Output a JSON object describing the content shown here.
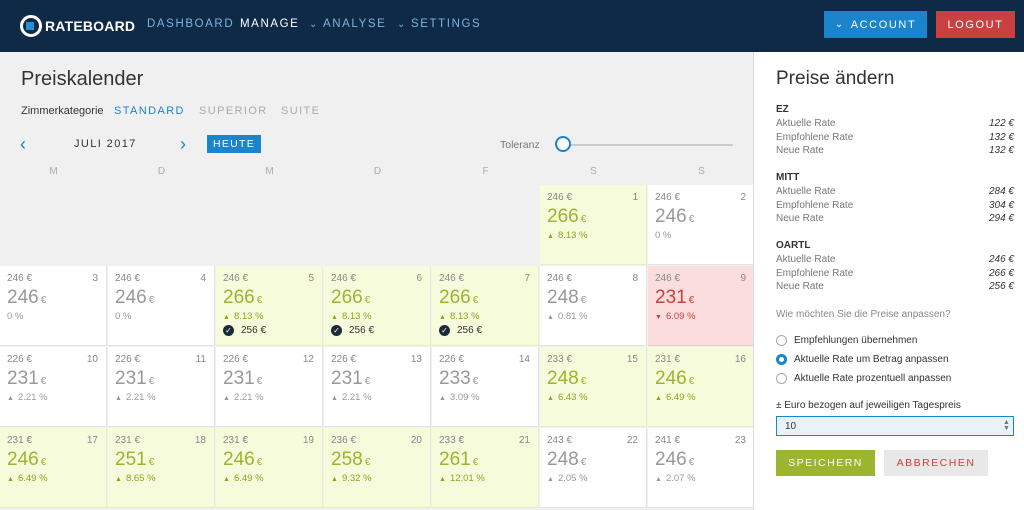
{
  "nav": {
    "logo": "RATEBOARD",
    "items": [
      "DASHBOARD",
      "MANAGE",
      "ANALYSE",
      "SETTINGS"
    ],
    "account": "ACCOUNT",
    "logout": "LOGOUT"
  },
  "calendar": {
    "title": "Preiskalender",
    "category_label": "Zimmerkategorie",
    "tabs": [
      "STANDARD",
      "SUPERIOR",
      "SUITE"
    ],
    "month": "JULI 2017",
    "today": "HEUTE",
    "tolerance": "Toleranz",
    "weekdays": [
      "M",
      "D",
      "M",
      "D",
      "F",
      "S",
      "S"
    ],
    "cells": [
      {
        "col": 5,
        "row": 0,
        "day": "1",
        "old": "246 €",
        "price": "266",
        "pct": "8.13 %",
        "dir": "up",
        "state": "green",
        "new": ""
      },
      {
        "col": 6,
        "row": 0,
        "day": "2",
        "old": "246 €",
        "price": "246",
        "pct": "0 %",
        "dir": "none",
        "state": "white",
        "new": ""
      },
      {
        "col": 0,
        "row": 1,
        "day": "3",
        "old": "246 €",
        "price": "246",
        "pct": "0 %",
        "dir": "none",
        "state": "white",
        "new": ""
      },
      {
        "col": 1,
        "row": 1,
        "day": "4",
        "old": "246 €",
        "price": "246",
        "pct": "0 %",
        "dir": "none",
        "state": "white",
        "new": ""
      },
      {
        "col": 2,
        "row": 1,
        "day": "5",
        "old": "246 €",
        "price": "266",
        "pct": "8.13 %",
        "dir": "up",
        "state": "green",
        "new": "256 €"
      },
      {
        "col": 3,
        "row": 1,
        "day": "6",
        "old": "246 €",
        "price": "266",
        "pct": "8.13 %",
        "dir": "up",
        "state": "green",
        "new": "256 €"
      },
      {
        "col": 4,
        "row": 1,
        "day": "7",
        "old": "246 €",
        "price": "266",
        "pct": "8.13 %",
        "dir": "up",
        "state": "green",
        "new": "256 €"
      },
      {
        "col": 5,
        "row": 1,
        "day": "8",
        "old": "246 €",
        "price": "248",
        "pct": "0.81 %",
        "dir": "up",
        "state": "white",
        "new": ""
      },
      {
        "col": 6,
        "row": 1,
        "day": "9",
        "old": "246 €",
        "price": "231",
        "pct": "6.09 %",
        "dir": "down",
        "state": "red",
        "new": ""
      },
      {
        "col": 0,
        "row": 2,
        "day": "10",
        "old": "226 €",
        "price": "231",
        "pct": "2.21 %",
        "dir": "up",
        "state": "white",
        "new": ""
      },
      {
        "col": 1,
        "row": 2,
        "day": "11",
        "old": "226 €",
        "price": "231",
        "pct": "2.21 %",
        "dir": "up",
        "state": "white",
        "new": ""
      },
      {
        "col": 2,
        "row": 2,
        "day": "12",
        "old": "226 €",
        "price": "231",
        "pct": "2.21 %",
        "dir": "up",
        "state": "white",
        "new": ""
      },
      {
        "col": 3,
        "row": 2,
        "day": "13",
        "old": "226 €",
        "price": "231",
        "pct": "2.21 %",
        "dir": "up",
        "state": "white",
        "new": ""
      },
      {
        "col": 4,
        "row": 2,
        "day": "14",
        "old": "226 €",
        "price": "233",
        "pct": "3.09 %",
        "dir": "up",
        "state": "white",
        "new": ""
      },
      {
        "col": 5,
        "row": 2,
        "day": "15",
        "old": "233 €",
        "price": "248",
        "pct": "6.43 %",
        "dir": "up",
        "state": "green",
        "new": ""
      },
      {
        "col": 6,
        "row": 2,
        "day": "16",
        "old": "231 €",
        "price": "246",
        "pct": "6.49 %",
        "dir": "up",
        "state": "green",
        "new": ""
      },
      {
        "col": 0,
        "row": 3,
        "day": "17",
        "old": "231 €",
        "price": "246",
        "pct": "6.49 %",
        "dir": "up",
        "state": "green",
        "new": ""
      },
      {
        "col": 1,
        "row": 3,
        "day": "18",
        "old": "231 €",
        "price": "251",
        "pct": "8.65 %",
        "dir": "up",
        "state": "green",
        "new": ""
      },
      {
        "col": 2,
        "row": 3,
        "day": "19",
        "old": "231 €",
        "price": "246",
        "pct": "6.49 %",
        "dir": "up",
        "state": "green",
        "new": ""
      },
      {
        "col": 3,
        "row": 3,
        "day": "20",
        "old": "236 €",
        "price": "258",
        "pct": "9.32 %",
        "dir": "up",
        "state": "green",
        "new": ""
      },
      {
        "col": 4,
        "row": 3,
        "day": "21",
        "old": "233 €",
        "price": "261",
        "pct": "12.01 %",
        "dir": "up",
        "state": "green",
        "new": ""
      },
      {
        "col": 5,
        "row": 3,
        "day": "22",
        "old": "243 €",
        "price": "248",
        "pct": "2.05 %",
        "dir": "up",
        "state": "white",
        "new": ""
      },
      {
        "col": 6,
        "row": 3,
        "day": "23",
        "old": "241 €",
        "price": "246",
        "pct": "2.07 %",
        "dir": "up",
        "state": "white",
        "new": ""
      }
    ]
  },
  "panel": {
    "title": "Preise ändern",
    "groups": [
      {
        "name": "EZ",
        "rows": [
          [
            "Aktuelle Rate",
            "122 €"
          ],
          [
            "Empfohlene Rate",
            "132 €"
          ],
          [
            "Neue Rate",
            "132 €"
          ]
        ]
      },
      {
        "name": "MITT",
        "rows": [
          [
            "Aktuelle Rate",
            "284 €"
          ],
          [
            "Empfohlene Rate",
            "304 €"
          ],
          [
            "Neue Rate",
            "294 €"
          ]
        ]
      },
      {
        "name": "OARTL",
        "rows": [
          [
            "Aktuelle Rate",
            "246 €"
          ],
          [
            "Empfohlene Rate",
            "266 €"
          ],
          [
            "Neue Rate",
            "256 €"
          ]
        ]
      }
    ],
    "question": "Wie möchten Sie die Preise anpassen?",
    "options": [
      "Empfehlungen übernehmen",
      "Aktuelle Rate um Betrag anpassen",
      "Aktuelle Rate prozentuell anpassen"
    ],
    "selected_option": 1,
    "input_label": "± Euro bezogen auf jeweiligen Tagespreis",
    "input_value": "10",
    "save": "SPEICHERN",
    "cancel": "ABBRECHEN"
  }
}
